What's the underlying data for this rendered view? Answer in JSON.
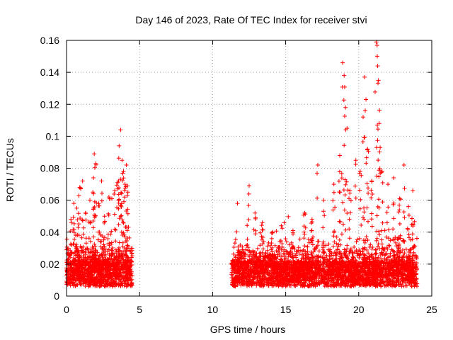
{
  "chart_data": {
    "type": "scatter",
    "title": "Day 146 of 2023, Rate Of TEC Index for receiver stvi",
    "xlabel": "GPS time / hours",
    "ylabel": "ROTI / TECUs",
    "xlim": [
      0,
      25
    ],
    "ylim": [
      0,
      0.16
    ],
    "x_ticks": [
      0,
      5,
      10,
      15,
      20,
      25
    ],
    "y_ticks": [
      0,
      0.02,
      0.04,
      0.06,
      0.08,
      0.1,
      0.12,
      0.14,
      0.16
    ],
    "x_tick_labels": [
      "0",
      "5",
      "10",
      "15",
      "20",
      "25"
    ],
    "y_tick_labels": [
      "0",
      "0.02",
      "0.04",
      "0.06",
      "0.08",
      "0.1",
      "0.12",
      "0.14",
      "0.16"
    ],
    "grid": true,
    "marker": "+",
    "marker_color": "#ff0000",
    "segments": [
      [
        0.0,
        4.5
      ],
      [
        11.3,
        24.0
      ]
    ],
    "notable_points": [
      [
        0.3,
        0.048
      ],
      [
        0.5,
        0.058
      ],
      [
        0.7,
        0.055
      ],
      [
        0.9,
        0.068
      ],
      [
        1.1,
        0.072
      ],
      [
        1.3,
        0.052
      ],
      [
        1.6,
        0.06
      ],
      [
        1.8,
        0.065
      ],
      [
        1.9,
        0.089
      ],
      [
        2.0,
        0.083
      ],
      [
        2.2,
        0.058
      ],
      [
        2.4,
        0.072
      ],
      [
        2.6,
        0.05
      ],
      [
        2.9,
        0.062
      ],
      [
        3.1,
        0.061
      ],
      [
        3.3,
        0.066
      ],
      [
        3.5,
        0.071
      ],
      [
        3.6,
        0.094
      ],
      [
        3.7,
        0.104
      ],
      [
        3.8,
        0.085
      ],
      [
        3.9,
        0.078
      ],
      [
        4.0,
        0.07
      ],
      [
        4.1,
        0.082
      ],
      [
        4.2,
        0.065
      ],
      [
        11.7,
        0.058
      ],
      [
        12.5,
        0.069
      ],
      [
        12.9,
        0.052
      ],
      [
        13.4,
        0.046
      ],
      [
        14.1,
        0.04
      ],
      [
        14.7,
        0.044
      ],
      [
        15.5,
        0.041
      ],
      [
        16.3,
        0.052
      ],
      [
        16.8,
        0.048
      ],
      [
        17.2,
        0.082
      ],
      [
        17.6,
        0.06
      ],
      [
        18.3,
        0.07
      ],
      [
        18.7,
        0.088
      ],
      [
        18.9,
        0.146
      ],
      [
        19.0,
        0.138
      ],
      [
        19.1,
        0.118
      ],
      [
        19.2,
        0.105
      ],
      [
        19.4,
        0.066
      ],
      [
        19.8,
        0.085
      ],
      [
        20.1,
        0.078
      ],
      [
        20.3,
        0.112
      ],
      [
        20.4,
        0.137
      ],
      [
        20.5,
        0.123
      ],
      [
        20.6,
        0.092
      ],
      [
        20.9,
        0.072
      ],
      [
        21.2,
        0.159
      ],
      [
        21.3,
        0.144
      ],
      [
        21.35,
        0.135
      ],
      [
        21.4,
        0.108
      ],
      [
        21.6,
        0.078
      ],
      [
        22.0,
        0.07
      ],
      [
        22.4,
        0.074
      ],
      [
        22.8,
        0.061
      ],
      [
        23.1,
        0.082
      ],
      [
        23.4,
        0.056
      ],
      [
        23.7,
        0.066
      ]
    ]
  }
}
